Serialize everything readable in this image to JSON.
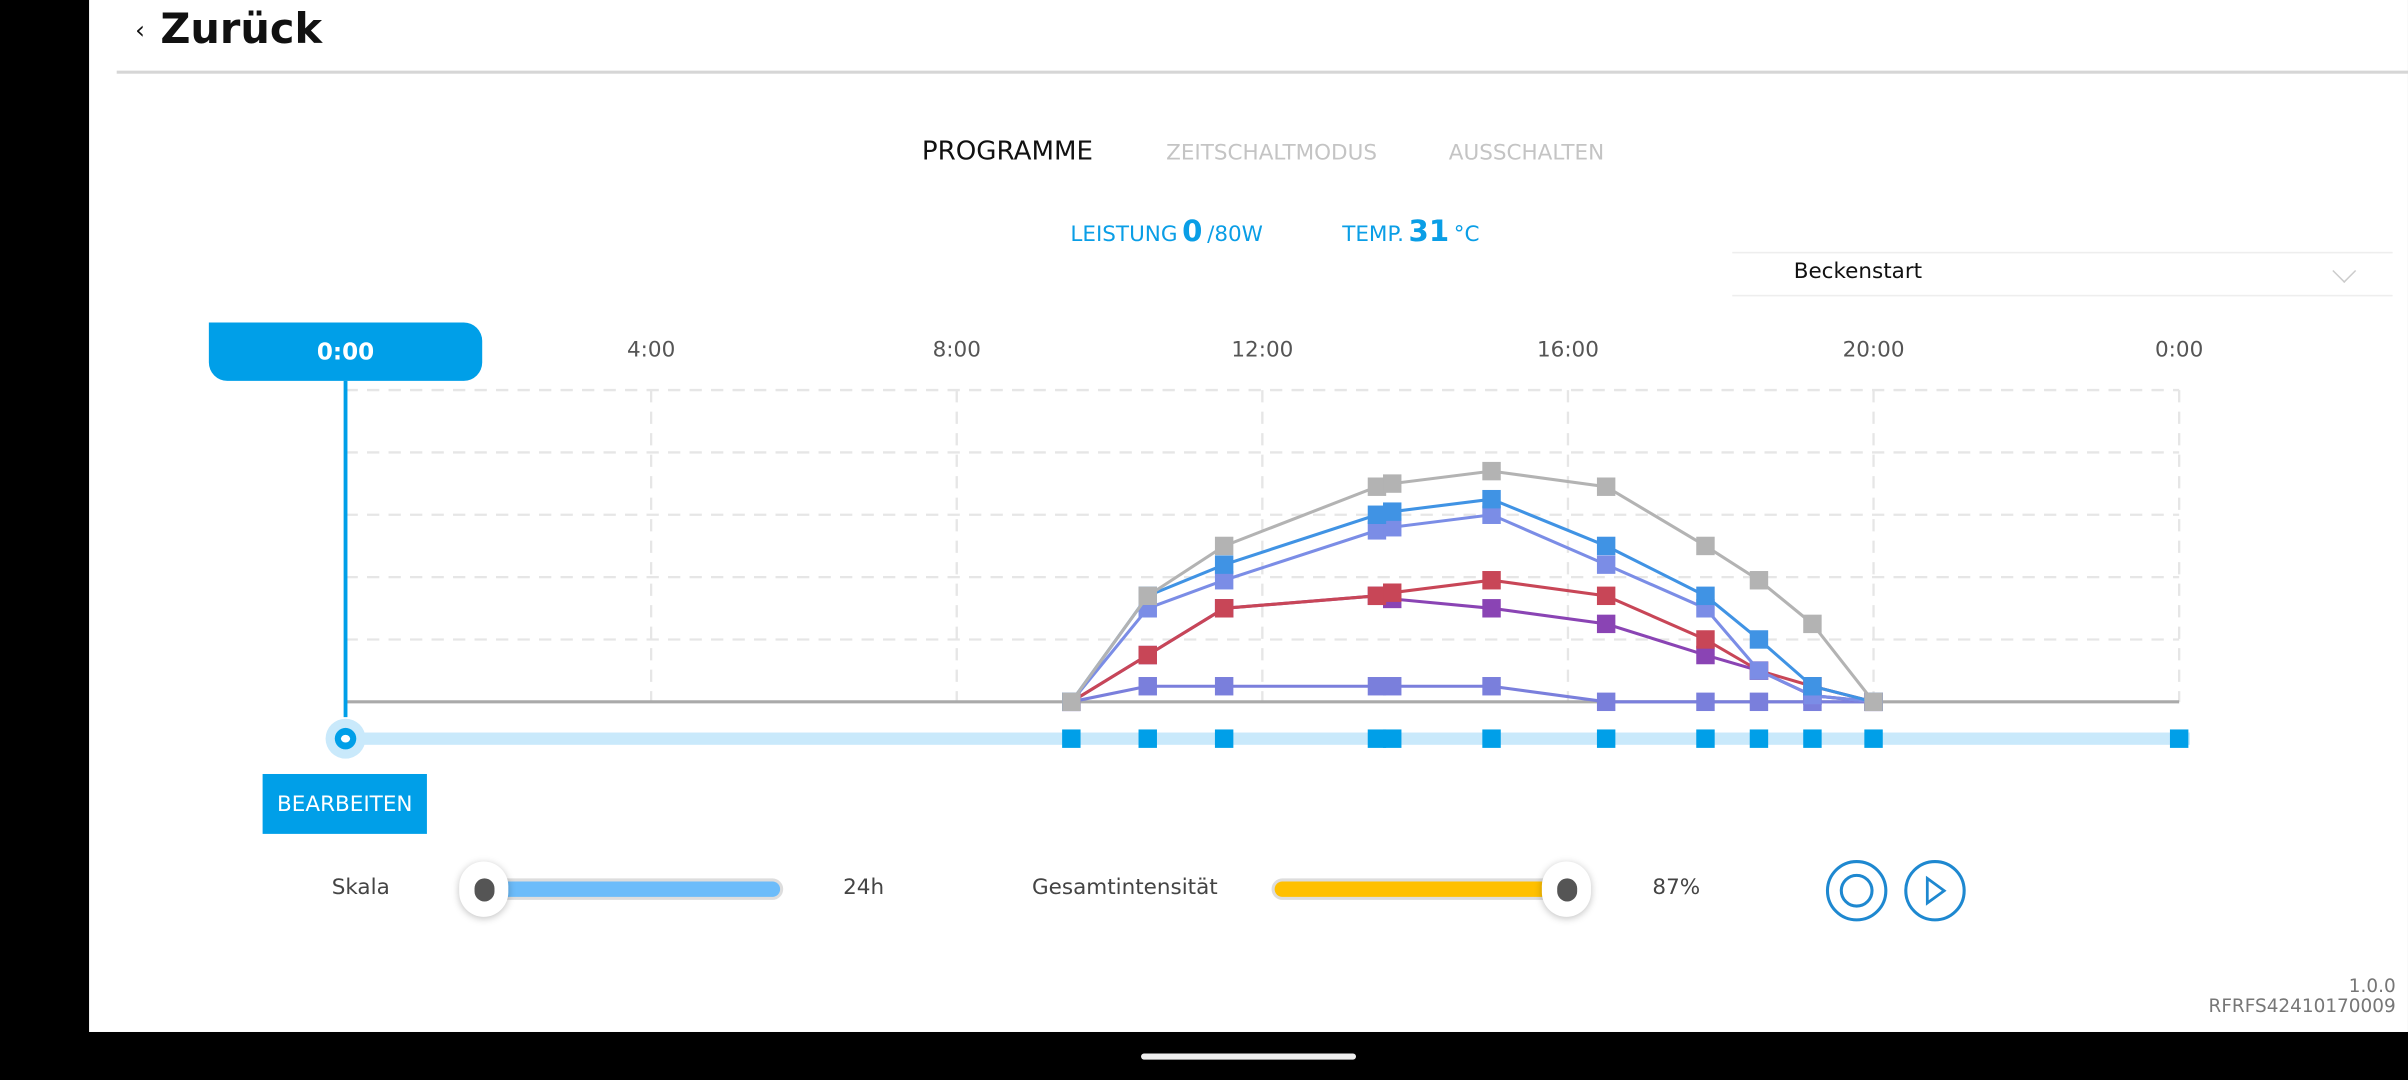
{
  "header": {
    "back_label": "Zurück",
    "back_icon": "chevron-left-icon"
  },
  "tabs": [
    {
      "label": "PROGRAMME",
      "active": true
    },
    {
      "label": "ZEITSCHALTMODUS",
      "active": false
    },
    {
      "label": "AUSSCHALTEN",
      "active": false
    }
  ],
  "status": {
    "power_label": "LEISTUNG",
    "power_value": "0",
    "power_max": "/80W",
    "temp_label": "TEMP.",
    "temp_value": "31",
    "temp_unit": "°C"
  },
  "program_select": {
    "value": "Beckenstart"
  },
  "current_time": "0:00",
  "edit_label": "BEARBEITEN",
  "scale": {
    "label": "Skala",
    "value": "24h",
    "level_percent": 0
  },
  "intensity": {
    "label": "Gesamtintensität",
    "value": "87%",
    "level_percent": 87
  },
  "controls": {
    "record_icon": "circle-icon",
    "play_icon": "play-icon"
  },
  "version": "1.0.0",
  "serial": "RFRFS42410170009",
  "colors": {
    "accent": "#009fe8",
    "intensity": "#ffc000",
    "scale": "#6cbcfa"
  },
  "chart_data": {
    "type": "line",
    "x_tick_labels": [
      "0:00",
      "4:00",
      "8:00",
      "12:00",
      "16:00",
      "20:00",
      "0:00"
    ],
    "x_ticks_hours": [
      0,
      4,
      8,
      12,
      16,
      20,
      24
    ],
    "xlim": [
      0,
      24
    ],
    "ylim": [
      0,
      100
    ],
    "grid": true,
    "x": [
      9.5,
      10.5,
      11.5,
      13.5,
      13.7,
      15.0,
      16.5,
      17.8,
      18.5,
      19.2,
      20.0
    ],
    "series": [
      {
        "color": "#b3b3b3",
        "values": [
          0,
          34,
          50,
          69,
          70,
          74,
          69,
          50,
          39,
          25,
          0
        ]
      },
      {
        "color": "#4093e4",
        "values": [
          0,
          34,
          44,
          60,
          61,
          65,
          50,
          34,
          20,
          5,
          0
        ]
      },
      {
        "color": "#7b8de6",
        "values": [
          0,
          30,
          39,
          55,
          56,
          60,
          44,
          30,
          10,
          2,
          0
        ]
      },
      {
        "color": "#8a44b4",
        "values": [
          0,
          15,
          30,
          34,
          33,
          30,
          25,
          15,
          10,
          2,
          0
        ]
      },
      {
        "color": "#c84657",
        "values": [
          0,
          15,
          30,
          34,
          35,
          39,
          34,
          20,
          10,
          5,
          0
        ]
      },
      {
        "color": "#7a7fdc",
        "values": [
          0,
          5,
          5,
          5,
          5,
          5,
          0,
          0,
          0,
          0,
          0
        ]
      }
    ],
    "timeline_markers_hours": [
      9.5,
      10.5,
      11.5,
      13.5,
      13.7,
      15.0,
      16.5,
      17.8,
      18.5,
      19.2,
      20.0,
      24.0
    ]
  }
}
